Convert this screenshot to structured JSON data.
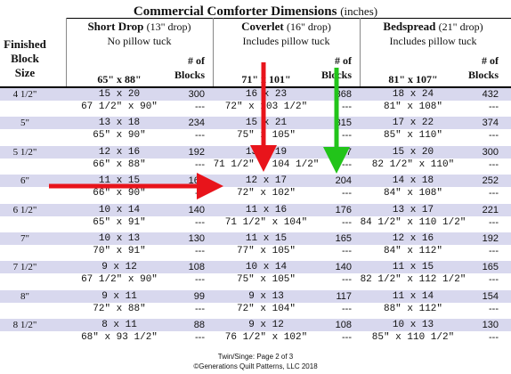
{
  "title": "Commercial Comforter Dimensions",
  "title_units": "(inches)",
  "row_header": [
    "Finished",
    "Block",
    "Size"
  ],
  "categories": [
    {
      "name": "Short Drop",
      "drop": "(13\" drop)",
      "desc": "No pillow tuck",
      "size": "65\" x 88\"",
      "blocks_label": [
        "# of",
        "Blocks"
      ]
    },
    {
      "name": "Coverlet",
      "drop": "(16\" drop)",
      "desc": "Includes pillow tuck",
      "size": "71\" x 101\"",
      "blocks_label": [
        "# of",
        "Blocks"
      ]
    },
    {
      "name": "Bedspread",
      "drop": "(21\" drop)",
      "desc": "Includes pillow tuck",
      "size": "81\" x 107\"",
      "blocks_label": [
        "# of",
        "Blocks"
      ]
    }
  ],
  "rows": [
    {
      "block": "4 1/2\"",
      "c": [
        {
          "grid": "15 x 20",
          "dim": "67 1/2\" x 90\"",
          "count": "300"
        },
        {
          "grid": "16 x 23",
          "dim": "72\" x 103 1/2\"",
          "count": "368"
        },
        {
          "grid": "18 x 24",
          "dim": "81\" x 108\"",
          "count": "432"
        }
      ]
    },
    {
      "block": "5\"",
      "c": [
        {
          "grid": "13 x 18",
          "dim": "65\" x 90\"",
          "count": "234"
        },
        {
          "grid": "15 x 21",
          "dim": "75\" x 105\"",
          "count": "315"
        },
        {
          "grid": "17 x 22",
          "dim": "85\" x 110\"",
          "count": "374"
        }
      ]
    },
    {
      "block": "5 1/2\"",
      "c": [
        {
          "grid": "12 x 16",
          "dim": "66\" x 88\"",
          "count": "192"
        },
        {
          "grid": "13 x 19",
          "dim": "71 1/2\" x 104 1/2\"",
          "count": "247"
        },
        {
          "grid": "15 x 20",
          "dim": "82 1/2\" x 110\"",
          "count": "300"
        }
      ]
    },
    {
      "block": "6\"",
      "c": [
        {
          "grid": "11 x 15",
          "dim": "66\" x 90\"",
          "count": "165"
        },
        {
          "grid": "12 x 17",
          "dim": "72\" x 102\"",
          "count": "204"
        },
        {
          "grid": "14 x 18",
          "dim": "84\" x 108\"",
          "count": "252"
        }
      ]
    },
    {
      "block": "6 1/2\"",
      "c": [
        {
          "grid": "10 x 14",
          "dim": "65\" x 91\"",
          "count": "140"
        },
        {
          "grid": "11 x 16",
          "dim": "71 1/2\" x 104\"",
          "count": "176"
        },
        {
          "grid": "13 x 17",
          "dim": "84 1/2\" x 110 1/2\"",
          "count": "221"
        }
      ]
    },
    {
      "block": "7\"",
      "c": [
        {
          "grid": "10 x 13",
          "dim": "70\" x 91\"",
          "count": "130"
        },
        {
          "grid": "11 x 15",
          "dim": "77\" x 105\"",
          "count": "165"
        },
        {
          "grid": "12 x 16",
          "dim": "84\" x 112\"",
          "count": "192"
        }
      ]
    },
    {
      "block": "7 1/2\"",
      "c": [
        {
          "grid": "9 x 12",
          "dim": "67 1/2\" x 90\"",
          "count": "108"
        },
        {
          "grid": "10 x 14",
          "dim": "75\" x 105\"",
          "count": "140"
        },
        {
          "grid": "11 x 15",
          "dim": "82 1/2\" x 112 1/2\"",
          "count": "165"
        }
      ]
    },
    {
      "block": "8\"",
      "c": [
        {
          "grid": "9 x 11",
          "dim": "72\" x 88\"",
          "count": "99"
        },
        {
          "grid": "9 x 13",
          "dim": "72\" x 104\"",
          "count": "117"
        },
        {
          "grid": "11 x 14",
          "dim": "88\" x 112\"",
          "count": "154"
        }
      ]
    },
    {
      "block": "8 1/2\"",
      "c": [
        {
          "grid": "8 x 11",
          "dim": "68\" x 93 1/2\"",
          "count": "88"
        },
        {
          "grid": "9 x 12",
          "dim": "76 1/2\" x 102\"",
          "count": "108"
        },
        {
          "grid": "10 x 13",
          "dim": "85\" x 110 1/2\"",
          "count": "130"
        }
      ]
    }
  ],
  "dash": "---",
  "footer_lines": [
    "Twin/Singe: Page 2 of 3",
    "©Generations Quilt Patterns, LLC 2018"
  ],
  "colors": {
    "band": "#d8d8ee",
    "red_arrow": "#e8141b",
    "green_arrow": "#22c41a"
  }
}
